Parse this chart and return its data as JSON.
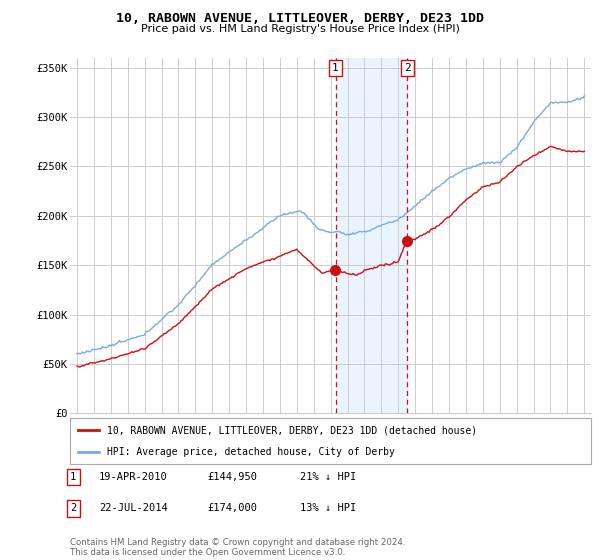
{
  "title": "10, RABOWN AVENUE, LITTLEOVER, DERBY, DE23 1DD",
  "subtitle": "Price paid vs. HM Land Registry's House Price Index (HPI)",
  "ylabel_ticks": [
    "£0",
    "£50K",
    "£100K",
    "£150K",
    "£200K",
    "£250K",
    "£300K",
    "£350K"
  ],
  "ytick_values": [
    0,
    50000,
    100000,
    150000,
    200000,
    250000,
    300000,
    350000
  ],
  "ylim": [
    0,
    360000
  ],
  "hpi_color": "#7aabe0",
  "price_color": "#cc1111",
  "sale1_yr": 2010.29,
  "sale1_price": 144950,
  "sale2_yr": 2014.54,
  "sale2_price": 174000,
  "sale1_date_str": "19-APR-2010",
  "sale1_pct": "21%",
  "sale2_date_str": "22-JUL-2014",
  "sale2_pct": "13%",
  "legend_line1": "10, RABOWN AVENUE, LITTLEOVER, DERBY, DE23 1DD (detached house)",
  "legend_line2": "HPI: Average price, detached house, City of Derby",
  "footnote": "Contains HM Land Registry data © Crown copyright and database right 2024.\nThis data is licensed under the Open Government Licence v3.0.",
  "background_color": "#ffffff",
  "grid_color": "#cccccc",
  "shade_color": "#ddeeff"
}
